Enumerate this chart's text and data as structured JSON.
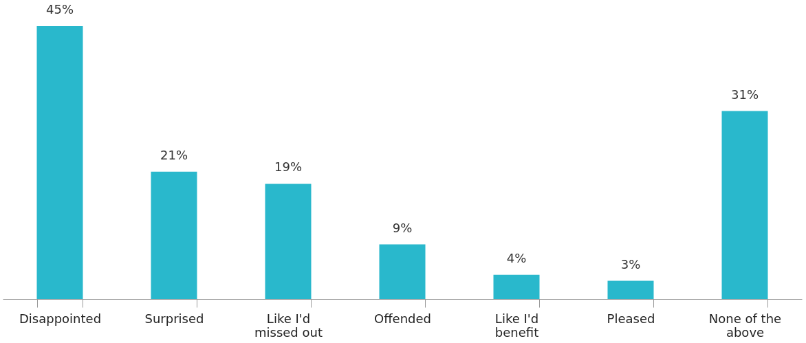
{
  "chart_data": {
    "type": "bar",
    "categories": [
      "Disappointed",
      "Surprised",
      "Like I'd missed out",
      "Offended",
      "Like I'd benefit",
      "Pleased",
      "None of the above"
    ],
    "values": [
      45,
      21,
      19,
      9,
      4,
      3,
      31
    ],
    "value_labels": [
      "45%",
      "21%",
      "19%",
      "9%",
      "4%",
      "3%",
      "31%"
    ],
    "color": "#29b8cc",
    "grid": false
  }
}
